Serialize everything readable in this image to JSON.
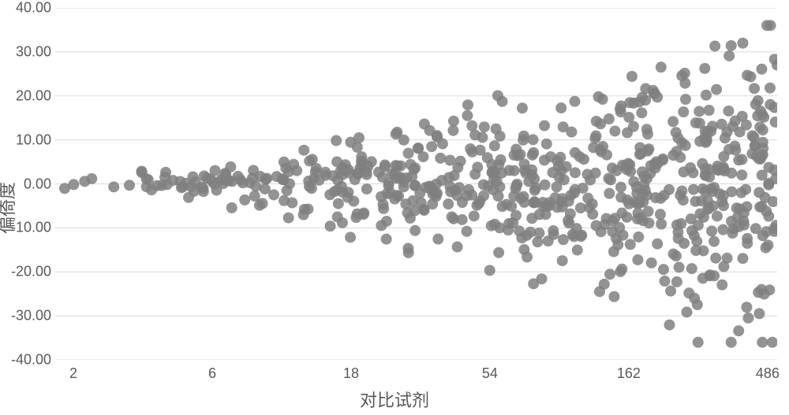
{
  "chart": {
    "type": "scatter",
    "background_color": "#ffffff",
    "grid_color": "#d9d9d9",
    "axis_line_color": "#d9d9d9",
    "tick_font_color": "#595959",
    "label_font_color": "#595959",
    "label_fontsize": 22,
    "tick_fontsize": 18,
    "marker_color": "#808080",
    "marker_radius": 7,
    "marker_opacity": 0.85,
    "xlabel": "对比试剂",
    "ylabel": "偏倚度",
    "x_scale": "log",
    "x_log_base": 3,
    "xlim_log": [
      0.5,
      5.7
    ],
    "ylim": [
      -40,
      40
    ],
    "yticks": [
      -40.0,
      -30.0,
      -20.0,
      -10.0,
      0.0,
      10.0,
      20.0,
      30.0,
      40.0
    ],
    "ytick_labels": [
      "-40.00",
      "-30.00",
      "-20.00",
      "-10.00",
      "0.00",
      "10.00",
      "20.00",
      "30.00",
      "40.00"
    ],
    "xticks_log": [
      0.6309,
      1.6309,
      2.6309,
      3.6309,
      4.6309,
      5.6309
    ],
    "xtick_labels": [
      "2",
      "6",
      "18",
      "54",
      "162",
      "486"
    ],
    "n_points": 700,
    "spread_factor": 7.0,
    "rand_seed": 42
  }
}
